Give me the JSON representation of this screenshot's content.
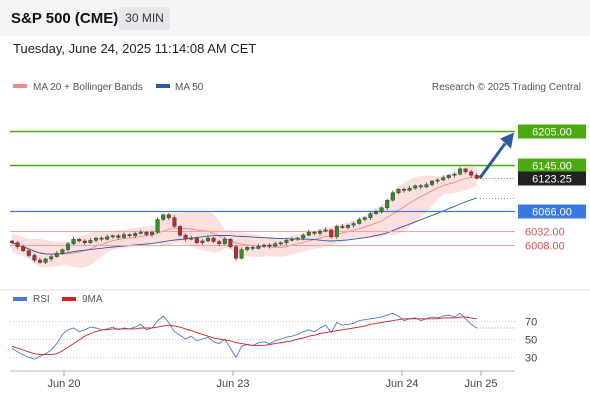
{
  "header": {
    "title": "S&P 500 (CME)",
    "interval_label": "30 MIN"
  },
  "timestamp": "Tuesday, June 24, 2025 11:14:08 AM CET",
  "legend": {
    "items": [
      {
        "label": "MA 20 + Bollinger Bands",
        "color": "#f08a8a"
      },
      {
        "label": "MA 50",
        "color": "#2f5b9e"
      }
    ],
    "copyright": "Research © 2025 Trading Central"
  },
  "chart_data": [
    {
      "type": "candlestick",
      "x_tick_labels": [
        "Jun 20",
        "Jun 23",
        "Jun 24",
        "Jun 25"
      ],
      "ylim": [
        5960,
        6225
      ],
      "levels": [
        {
          "value": 6205.0,
          "label": "6205.00",
          "color": "#4caa11",
          "kind": "resistance"
        },
        {
          "value": 6145.0,
          "label": "6145.00",
          "color": "#4caa11",
          "kind": "resistance"
        },
        {
          "value": 6123.25,
          "label": "6123.25",
          "color": "#222222",
          "kind": "last-price"
        },
        {
          "value": 6066.0,
          "label": "6066.00",
          "color": "#3a78e0",
          "kind": "pivot"
        },
        {
          "value": 6032.0,
          "label": "6032.00",
          "color": "#e05050",
          "kind": "support"
        },
        {
          "value": 6008.0,
          "label": "6008.00",
          "color": "#e05050",
          "kind": "support"
        }
      ],
      "series": [
        {
          "name": "MA 20 + Bollinger Bands",
          "color": "#f08a8a"
        },
        {
          "name": "MA 50",
          "color": "#2f5b9e"
        }
      ],
      "price_path": [
        6012,
        6005,
        5998,
        5990,
        5982,
        5978,
        5984,
        5988,
        5994,
        6000,
        6010,
        6018,
        6015,
        6012,
        6016,
        6020,
        6018,
        6022,
        6024,
        6021,
        6026,
        6024,
        6028,
        6030,
        6026,
        6030,
        6052,
        6060,
        6055,
        6040,
        6025,
        6018,
        6020,
        6012,
        6015,
        6020,
        6014,
        6010,
        6018,
        6005,
        5985,
        6000,
        6004,
        6002,
        6006,
        6008,
        6006,
        6010,
        6012,
        6016,
        6018,
        6020,
        6025,
        6030,
        6028,
        6032,
        6034,
        6022,
        6040,
        6038,
        6042,
        6045,
        6052,
        6055,
        6062,
        6065,
        6072,
        6085,
        6098,
        6104,
        6102,
        6106,
        6110,
        6108,
        6112,
        6118,
        6120,
        6124,
        6128,
        6130,
        6139,
        6134,
        6128,
        6123
      ]
    },
    {
      "type": "line",
      "ylim": [
        20,
        80
      ],
      "yticks": [
        30,
        50,
        70
      ],
      "series": [
        {
          "name": "RSI",
          "color": "#4a7bd8",
          "values": [
            40,
            36,
            33,
            30,
            28,
            31,
            34,
            38,
            45,
            55,
            60,
            62,
            58,
            60,
            63,
            62,
            60,
            61,
            63,
            60,
            62,
            61,
            63,
            66,
            60,
            62,
            70,
            75,
            68,
            58,
            54,
            50,
            53,
            48,
            50,
            52,
            47,
            45,
            50,
            40,
            30,
            42,
            44,
            43,
            46,
            47,
            45,
            48,
            50,
            52,
            53,
            55,
            58,
            60,
            58,
            62,
            65,
            57,
            68,
            65,
            66,
            67,
            70,
            71,
            72,
            73,
            74,
            76,
            78,
            75,
            70,
            72,
            73,
            70,
            72,
            74,
            73,
            75,
            76,
            74,
            78,
            72,
            66,
            62
          ]
        },
        {
          "name": "9MA",
          "color": "#d62222",
          "values": [
            42,
            40,
            38,
            36,
            34,
            33,
            33,
            33,
            34,
            37,
            41,
            45,
            49,
            53,
            56,
            58,
            60,
            60,
            61,
            61,
            61,
            61,
            61,
            62,
            62,
            62,
            63,
            64,
            65,
            64,
            63,
            61,
            59,
            57,
            55,
            53,
            51,
            50,
            49,
            48,
            46,
            45,
            44,
            43,
            43,
            43,
            44,
            45,
            46,
            47,
            48,
            50,
            51,
            53,
            54,
            56,
            57,
            58,
            59,
            60,
            61,
            62,
            63,
            64,
            66,
            67,
            68,
            69,
            70,
            71,
            72,
            72,
            72,
            72,
            72,
            72,
            72,
            73,
            73,
            73,
            74,
            74,
            73,
            72
          ]
        }
      ]
    }
  ]
}
